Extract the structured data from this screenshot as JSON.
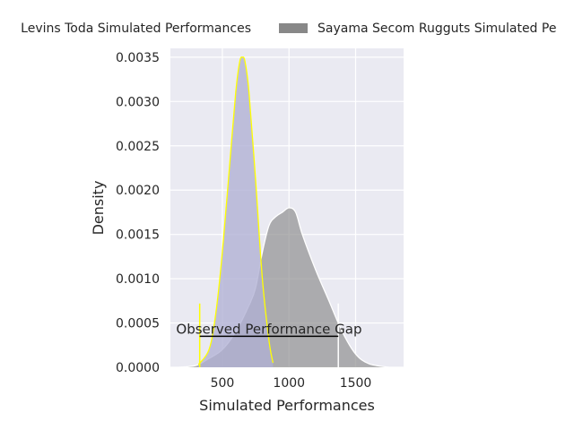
{
  "chart_data": {
    "type": "area",
    "xlabel": "Simulated Performances",
    "ylabel": "Density",
    "xlim": [
      110,
      1860
    ],
    "ylim": [
      0,
      0.0036
    ],
    "x_ticks": [
      500,
      1000,
      1500
    ],
    "x_tick_labels": [
      "500",
      "1000",
      "1500"
    ],
    "y_ticks": [
      0,
      0.0005,
      0.001,
      0.0015,
      0.002,
      0.0025,
      0.003,
      0.0035
    ],
    "y_tick_labels": [
      "0.0000",
      "0.0005",
      "0.0010",
      "0.0015",
      "0.0020",
      "0.0025",
      "0.0030",
      "0.0035"
    ],
    "grid": true,
    "legend_position": "top-center",
    "legend": [
      {
        "label": "Levins Toda Simulated Performances",
        "color": "#b0b0d4"
      },
      {
        "label": "Sayama Secom Rugguts Simulated Pe",
        "color": "#888888"
      }
    ],
    "series": [
      {
        "name": "Levins Toda Simulated Performances",
        "color": "#b0b0d4",
        "edge_color": "#ffff00",
        "x": [
          320,
          400,
          450,
          500,
          550,
          600,
          630,
          650,
          670,
          700,
          750,
          800,
          850,
          880
        ],
        "y": [
          3e-05,
          0.0002,
          0.0006,
          0.0013,
          0.0022,
          0.0031,
          0.00345,
          0.0035,
          0.00345,
          0.0031,
          0.0021,
          0.001,
          0.0003,
          5e-05
        ]
      },
      {
        "name": "Sayama Secom Rugguts Simulated Pe",
        "color": "#888888",
        "edge_color": "#ffffff",
        "x": [
          170,
          300,
          400,
          500,
          600,
          700,
          750,
          800,
          850,
          900,
          950,
          1000,
          1050,
          1100,
          1200,
          1300,
          1400,
          1500,
          1600,
          1750
        ],
        "y": [
          0,
          2e-05,
          0.0001,
          0.0002,
          0.0004,
          0.0007,
          0.0009,
          0.0013,
          0.0016,
          0.0017,
          0.00175,
          0.0018,
          0.00175,
          0.0015,
          0.0011,
          0.00075,
          0.0004,
          0.00015,
          4e-05,
          0
        ]
      }
    ],
    "annotation": {
      "text": "Observed Performance Gap",
      "x_start": 330,
      "x_end": 1370,
      "y": 0.00035,
      "start_tick_top": 0.00072,
      "end_tick_top": 0.00072,
      "start_color": "#ffff00",
      "end_color": "#ffffff"
    }
  }
}
